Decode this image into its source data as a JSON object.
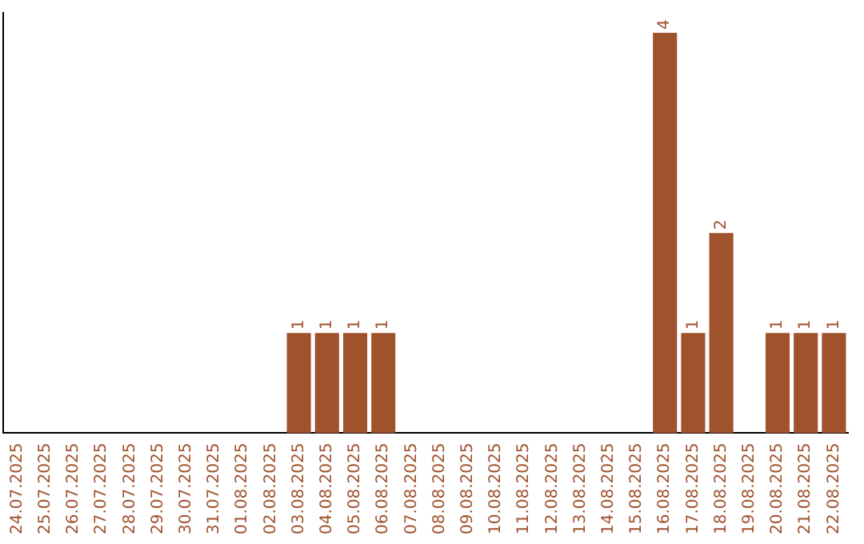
{
  "chart_data": {
    "type": "bar",
    "categories": [
      "24.07.2025",
      "25.07.2025",
      "26.07.2025",
      "27.07.2025",
      "28.07.2025",
      "29.07.2025",
      "30.07.2025",
      "31.07.2025",
      "01.08.2025",
      "02.08.2025",
      "03.08.2025",
      "04.08.2025",
      "05.08.2025",
      "06.08.2025",
      "07.08.2025",
      "08.08.2025",
      "09.08.2025",
      "10.08.2025",
      "11.08.2025",
      "12.08.2025",
      "13.08.2025",
      "14.08.2025",
      "15.08.2025",
      "16.08.2025",
      "17.08.2025",
      "18.08.2025",
      "19.08.2025",
      "20.08.2025",
      "21.08.2025",
      "22.08.2025"
    ],
    "values": [
      0,
      0,
      0,
      0,
      0,
      0,
      0,
      0,
      0,
      0,
      1,
      1,
      1,
      1,
      0,
      0,
      0,
      0,
      0,
      0,
      0,
      0,
      0,
      4,
      1,
      2,
      0,
      1,
      1,
      1
    ],
    "value_labels": [
      null,
      null,
      null,
      null,
      null,
      null,
      null,
      null,
      null,
      null,
      "1",
      "1",
      "1",
      "1",
      null,
      null,
      null,
      null,
      null,
      null,
      null,
      null,
      null,
      "4",
      "1",
      "2",
      null,
      "1",
      "1",
      "1"
    ],
    "color": "#a0522d",
    "ylim": [
      0,
      4.2
    ],
    "tick_labels": "x",
    "grid": false,
    "legend": false
  }
}
